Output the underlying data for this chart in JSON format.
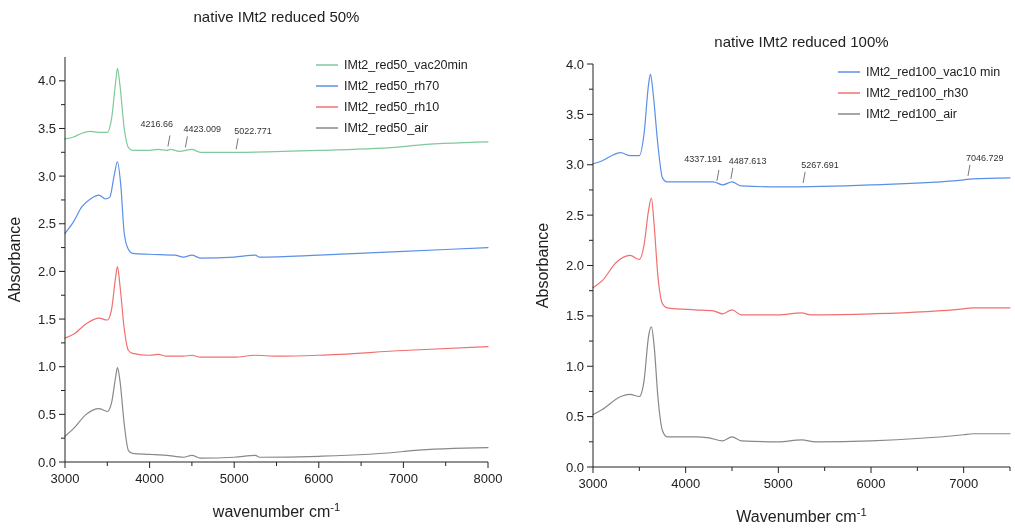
{
  "chart_data": [
    {
      "type": "line",
      "title": "native IMt2 reduced 50%",
      "xlabel": "wavenumber cm$^{-1}$",
      "ylabel": "Absorbance",
      "xlim": [
        3000,
        8000
      ],
      "ylim": [
        0,
        4.25
      ],
      "xticks": [
        3000,
        {
          "value": 3500,
          "label": null
        },
        4000,
        {
          "value": 4500,
          "label": null
        },
        5000,
        {
          "value": 5500,
          "label": null
        },
        6000,
        {
          "value": 6500,
          "label": null
        },
        7000,
        {
          "value": 7500,
          "label": null
        },
        8000
      ],
      "yticks": [
        {
          "value": 0,
          "label": "0.0"
        },
        {
          "value": 0.25,
          "label": null
        },
        {
          "value": 0.5,
          "label": "0.5"
        },
        {
          "value": 0.75,
          "label": null
        },
        {
          "value": 1,
          "label": "1.0"
        },
        {
          "value": 1.25,
          "label": null
        },
        {
          "value": 1.5,
          "label": "1.5"
        },
        {
          "value": 1.75,
          "label": null
        },
        {
          "value": 2,
          "label": "2.0"
        },
        {
          "value": 2.25,
          "label": null
        },
        {
          "value": 2.5,
          "label": "2.5"
        },
        {
          "value": 2.75,
          "label": null
        },
        {
          "value": 3,
          "label": "3.0"
        },
        {
          "value": 3.25,
          "label": null
        },
        {
          "value": 3.5,
          "label": "3.5"
        },
        {
          "value": 3.75,
          "label": null
        },
        {
          "value": 4,
          "label": "4.0"
        }
      ],
      "grid": false,
      "legend": "top right",
      "marker": "none",
      "line_style": "solid",
      "annotations": [
        {
          "text": "4216.66",
          "x": 4216.66,
          "y": 3.28
        },
        {
          "text": "4423.009",
          "x": 4423.009,
          "y": 3.27
        },
        {
          "text": "5022.771",
          "x": 5022.771,
          "y": 3.25
        }
      ],
      "series": [
        {
          "name": "IMt2_red50_vac20min",
          "color": "#7fc99a",
          "x": [
            3000,
            3100,
            3200,
            3300,
            3400,
            3500,
            3550,
            3600,
            3620,
            3650,
            3700,
            3750,
            3800,
            4000,
            4100,
            4200,
            4250,
            4350,
            4500,
            4600,
            5000,
            6000,
            7000,
            7100,
            8000
          ],
          "values": [
            3.39,
            3.41,
            3.45,
            3.47,
            3.46,
            3.46,
            3.6,
            4.0,
            4.13,
            3.95,
            3.5,
            3.3,
            3.27,
            3.27,
            3.28,
            3.27,
            3.28,
            3.26,
            3.28,
            3.25,
            3.25,
            3.27,
            3.31,
            3.32,
            3.36
          ]
        },
        {
          "name": "IMt2_red50_rh70",
          "color": "#5b8fe8",
          "x": [
            3000,
            3100,
            3200,
            3300,
            3400,
            3480,
            3530,
            3580,
            3620,
            3660,
            3700,
            3750,
            3800,
            4000,
            4300,
            4400,
            4500,
            4600,
            5000,
            5250,
            5300,
            6000,
            7000,
            8000
          ],
          "values": [
            2.4,
            2.52,
            2.68,
            2.76,
            2.8,
            2.76,
            2.78,
            3.0,
            3.15,
            2.9,
            2.4,
            2.23,
            2.19,
            2.18,
            2.17,
            2.15,
            2.17,
            2.14,
            2.15,
            2.17,
            2.15,
            2.17,
            2.21,
            2.25
          ]
        },
        {
          "name": "IMt2_red50_rh10",
          "color": "#f07070",
          "x": [
            3000,
            3100,
            3250,
            3400,
            3500,
            3550,
            3600,
            3620,
            3650,
            3700,
            3750,
            3800,
            4000,
            4100,
            4200,
            4400,
            4500,
            4600,
            5000,
            5250,
            5500,
            6000,
            7000,
            8000
          ],
          "values": [
            1.3,
            1.34,
            1.45,
            1.51,
            1.49,
            1.6,
            1.95,
            2.05,
            1.85,
            1.4,
            1.17,
            1.14,
            1.12,
            1.13,
            1.11,
            1.11,
            1.12,
            1.1,
            1.1,
            1.12,
            1.11,
            1.12,
            1.17,
            1.21
          ]
        },
        {
          "name": "IMt2_red50_air",
          "color": "#888888",
          "x": [
            3000,
            3100,
            3250,
            3400,
            3500,
            3550,
            3600,
            3620,
            3650,
            3700,
            3750,
            3800,
            4000,
            4200,
            4400,
            4500,
            4600,
            5000,
            5250,
            5300,
            6000,
            7000,
            7100,
            8000
          ],
          "values": [
            0.27,
            0.35,
            0.5,
            0.56,
            0.53,
            0.62,
            0.9,
            0.99,
            0.85,
            0.4,
            0.12,
            0.09,
            0.08,
            0.07,
            0.05,
            0.07,
            0.04,
            0.05,
            0.07,
            0.05,
            0.06,
            0.11,
            0.12,
            0.15
          ]
        }
      ]
    },
    {
      "type": "line",
      "title": "native IMt2 reduced 100%",
      "xlabel": "Wavenumber cm$^{-1}$",
      "ylabel": "Absorbance",
      "xlim": [
        3000,
        7500
      ],
      "ylim": [
        0,
        4
      ],
      "xticks": [
        3000,
        {
          "value": 3500,
          "label": null
        },
        4000,
        {
          "value": 4500,
          "label": null
        },
        5000,
        {
          "value": 5500,
          "label": null
        },
        6000,
        {
          "value": 6500,
          "label": null
        },
        7000,
        {
          "value": 7500,
          "label": null
        }
      ],
      "yticks": [
        {
          "value": 0,
          "label": "0.0"
        },
        {
          "value": 0.25,
          "label": null
        },
        {
          "value": 0.5,
          "label": "0.5"
        },
        {
          "value": 0.75,
          "label": null
        },
        {
          "value": 1,
          "label": "1.0"
        },
        {
          "value": 1.25,
          "label": null
        },
        {
          "value": 1.5,
          "label": "1.5"
        },
        {
          "value": 1.75,
          "label": null
        },
        {
          "value": 2,
          "label": "2.0"
        },
        {
          "value": 2.25,
          "label": null
        },
        {
          "value": 2.5,
          "label": "2.5"
        },
        {
          "value": 2.75,
          "label": null
        },
        {
          "value": 3,
          "label": "3.0"
        },
        {
          "value": 3.25,
          "label": null
        },
        {
          "value": 3.5,
          "label": "3.5"
        },
        {
          "value": 3.75,
          "label": null
        },
        {
          "value": 4,
          "label": "4.0"
        }
      ],
      "grid": false,
      "legend": "top right",
      "marker": "none",
      "line_style": "solid",
      "annotations": [
        {
          "text": "4337.191",
          "x": 4337.191,
          "y": 2.81
        },
        {
          "text": "4487.613",
          "x": 4487.613,
          "y": 2.83
        },
        {
          "text": "5267.691",
          "x": 5267.691,
          "y": 2.79
        },
        {
          "text": "7046.729",
          "x": 7046.729,
          "y": 2.86
        }
      ],
      "series": [
        {
          "name": "IMt2_red100_vac10 min",
          "color": "#5b8fe8",
          "x": [
            3000,
            3100,
            3200,
            3300,
            3400,
            3500,
            3550,
            3600,
            3620,
            3650,
            3700,
            3750,
            3800,
            4100,
            4300,
            4400,
            4500,
            4600,
            5000,
            6000,
            7000,
            7100,
            7500
          ],
          "values": [
            3.01,
            3.04,
            3.09,
            3.12,
            3.09,
            3.09,
            3.3,
            3.8,
            3.9,
            3.7,
            3.2,
            2.87,
            2.83,
            2.83,
            2.83,
            2.8,
            2.83,
            2.79,
            2.78,
            2.8,
            2.85,
            2.86,
            2.87
          ]
        },
        {
          "name": "IMt2_red100_rh30",
          "color": "#f07070",
          "x": [
            3000,
            3100,
            3250,
            3400,
            3500,
            3550,
            3600,
            3630,
            3660,
            3700,
            3750,
            3800,
            4100,
            4300,
            4400,
            4500,
            4600,
            5000,
            5250,
            5350,
            6000,
            7000,
            7100,
            7500
          ],
          "values": [
            1.78,
            1.85,
            2.03,
            2.1,
            2.06,
            2.2,
            2.55,
            2.67,
            2.4,
            1.9,
            1.62,
            1.58,
            1.56,
            1.55,
            1.52,
            1.56,
            1.51,
            1.51,
            1.53,
            1.51,
            1.52,
            1.57,
            1.58,
            1.58
          ]
        },
        {
          "name": "IMt2_red100_air",
          "color": "#888888",
          "x": [
            3000,
            3100,
            3300,
            3400,
            3500,
            3550,
            3600,
            3630,
            3660,
            3700,
            3750,
            3800,
            4100,
            4250,
            4400,
            4500,
            4600,
            5000,
            5250,
            5400,
            6000,
            7000,
            7100,
            7500
          ],
          "values": [
            0.52,
            0.57,
            0.7,
            0.72,
            0.7,
            0.85,
            1.3,
            1.39,
            1.2,
            0.7,
            0.36,
            0.3,
            0.3,
            0.29,
            0.26,
            0.3,
            0.26,
            0.25,
            0.27,
            0.25,
            0.26,
            0.32,
            0.33,
            0.33
          ]
        }
      ]
    }
  ]
}
